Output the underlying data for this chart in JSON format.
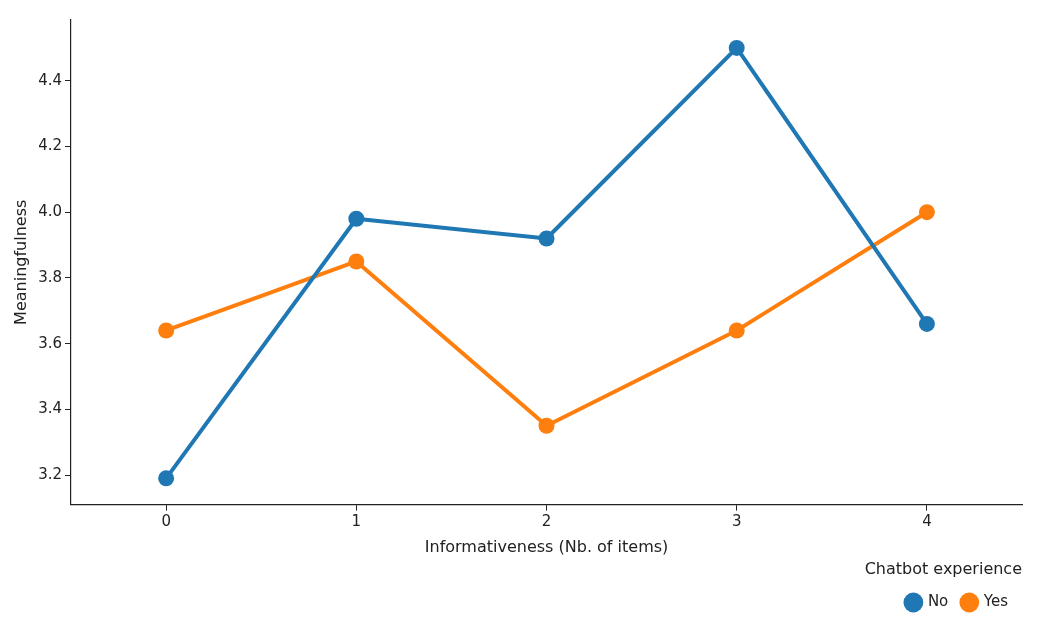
{
  "chart_data": {
    "type": "line",
    "xlabel": "Informativeness (Nb. of items)",
    "ylabel": "Meaningfulness",
    "legend_title": "Chatbot experience",
    "categories": [
      "0",
      "1",
      "2",
      "3",
      "4"
    ],
    "series": [
      {
        "name": "No",
        "color": "#1f77b4",
        "values": [
          3.19,
          3.98,
          3.92,
          4.5,
          3.66
        ]
      },
      {
        "name": "Yes",
        "color": "#ff7f0e",
        "values": [
          3.64,
          3.85,
          3.35,
          3.64,
          4.0
        ]
      }
    ],
    "ylim": [
      3.11,
      4.585
    ],
    "yticks": [
      3.2,
      3.4,
      3.6,
      3.8,
      {
        "value": 4,
        "label": "4.0"
      },
      4.2,
      4.4
    ],
    "grid": false,
    "legend": "bottom right",
    "marker": "circle",
    "line_style": "solid"
  }
}
